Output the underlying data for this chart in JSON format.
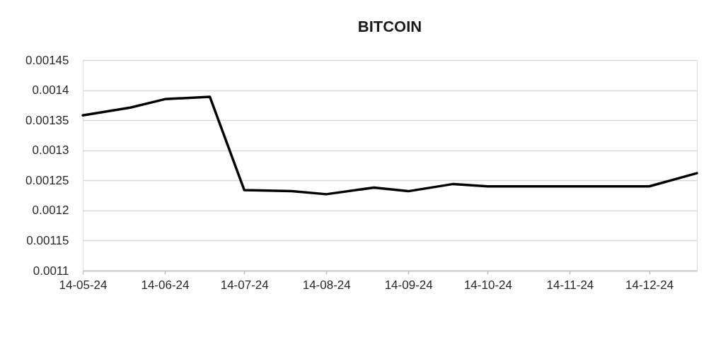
{
  "chart_data": {
    "type": "line",
    "title": "BITCOIN",
    "x": [
      "2024-05-14",
      "2024-06-01",
      "2024-06-14",
      "2024-07-01",
      "2024-07-14",
      "2024-08-01",
      "2024-08-14",
      "2024-09-01",
      "2024-09-14",
      "2024-10-01",
      "2024-10-14",
      "2024-11-01",
      "2024-11-14",
      "2024-12-01",
      "2024-12-14",
      "2025-01-01"
    ],
    "series": [
      {
        "color": "#000000",
        "values": [
          0.001358,
          0.001371,
          0.001385,
          0.001389,
          0.001234,
          0.001232,
          0.001227,
          0.001238,
          0.001232,
          0.001244,
          0.00124,
          0.00124,
          0.00124,
          0.00124,
          0.00124,
          0.001262
        ]
      }
    ],
    "xlim": [
      "2024-05-14",
      "2025-01-01"
    ],
    "xticks": [
      {
        "value": "2024-05-14",
        "label": "14-05-24"
      },
      {
        "value": "2024-06-14",
        "label": "14-06-24"
      },
      {
        "value": "2024-07-14",
        "label": "14-07-24"
      },
      {
        "value": "2024-08-14",
        "label": "14-08-24"
      },
      {
        "value": "2024-09-14",
        "label": "14-09-24"
      },
      {
        "value": "2024-10-14",
        "label": "14-10-24"
      },
      {
        "value": "2024-11-14",
        "label": "14-11-24"
      },
      {
        "value": "2024-12-14",
        "label": "14-12-24"
      }
    ],
    "ylim": [
      0.0011,
      0.00145
    ],
    "yticks": [
      0.0011,
      0.00115,
      0.0012,
      0.00125,
      0.0013,
      0.00135,
      0.0014,
      0.00145
    ],
    "grid": "y",
    "marker": "none",
    "line_style": "solid"
  }
}
